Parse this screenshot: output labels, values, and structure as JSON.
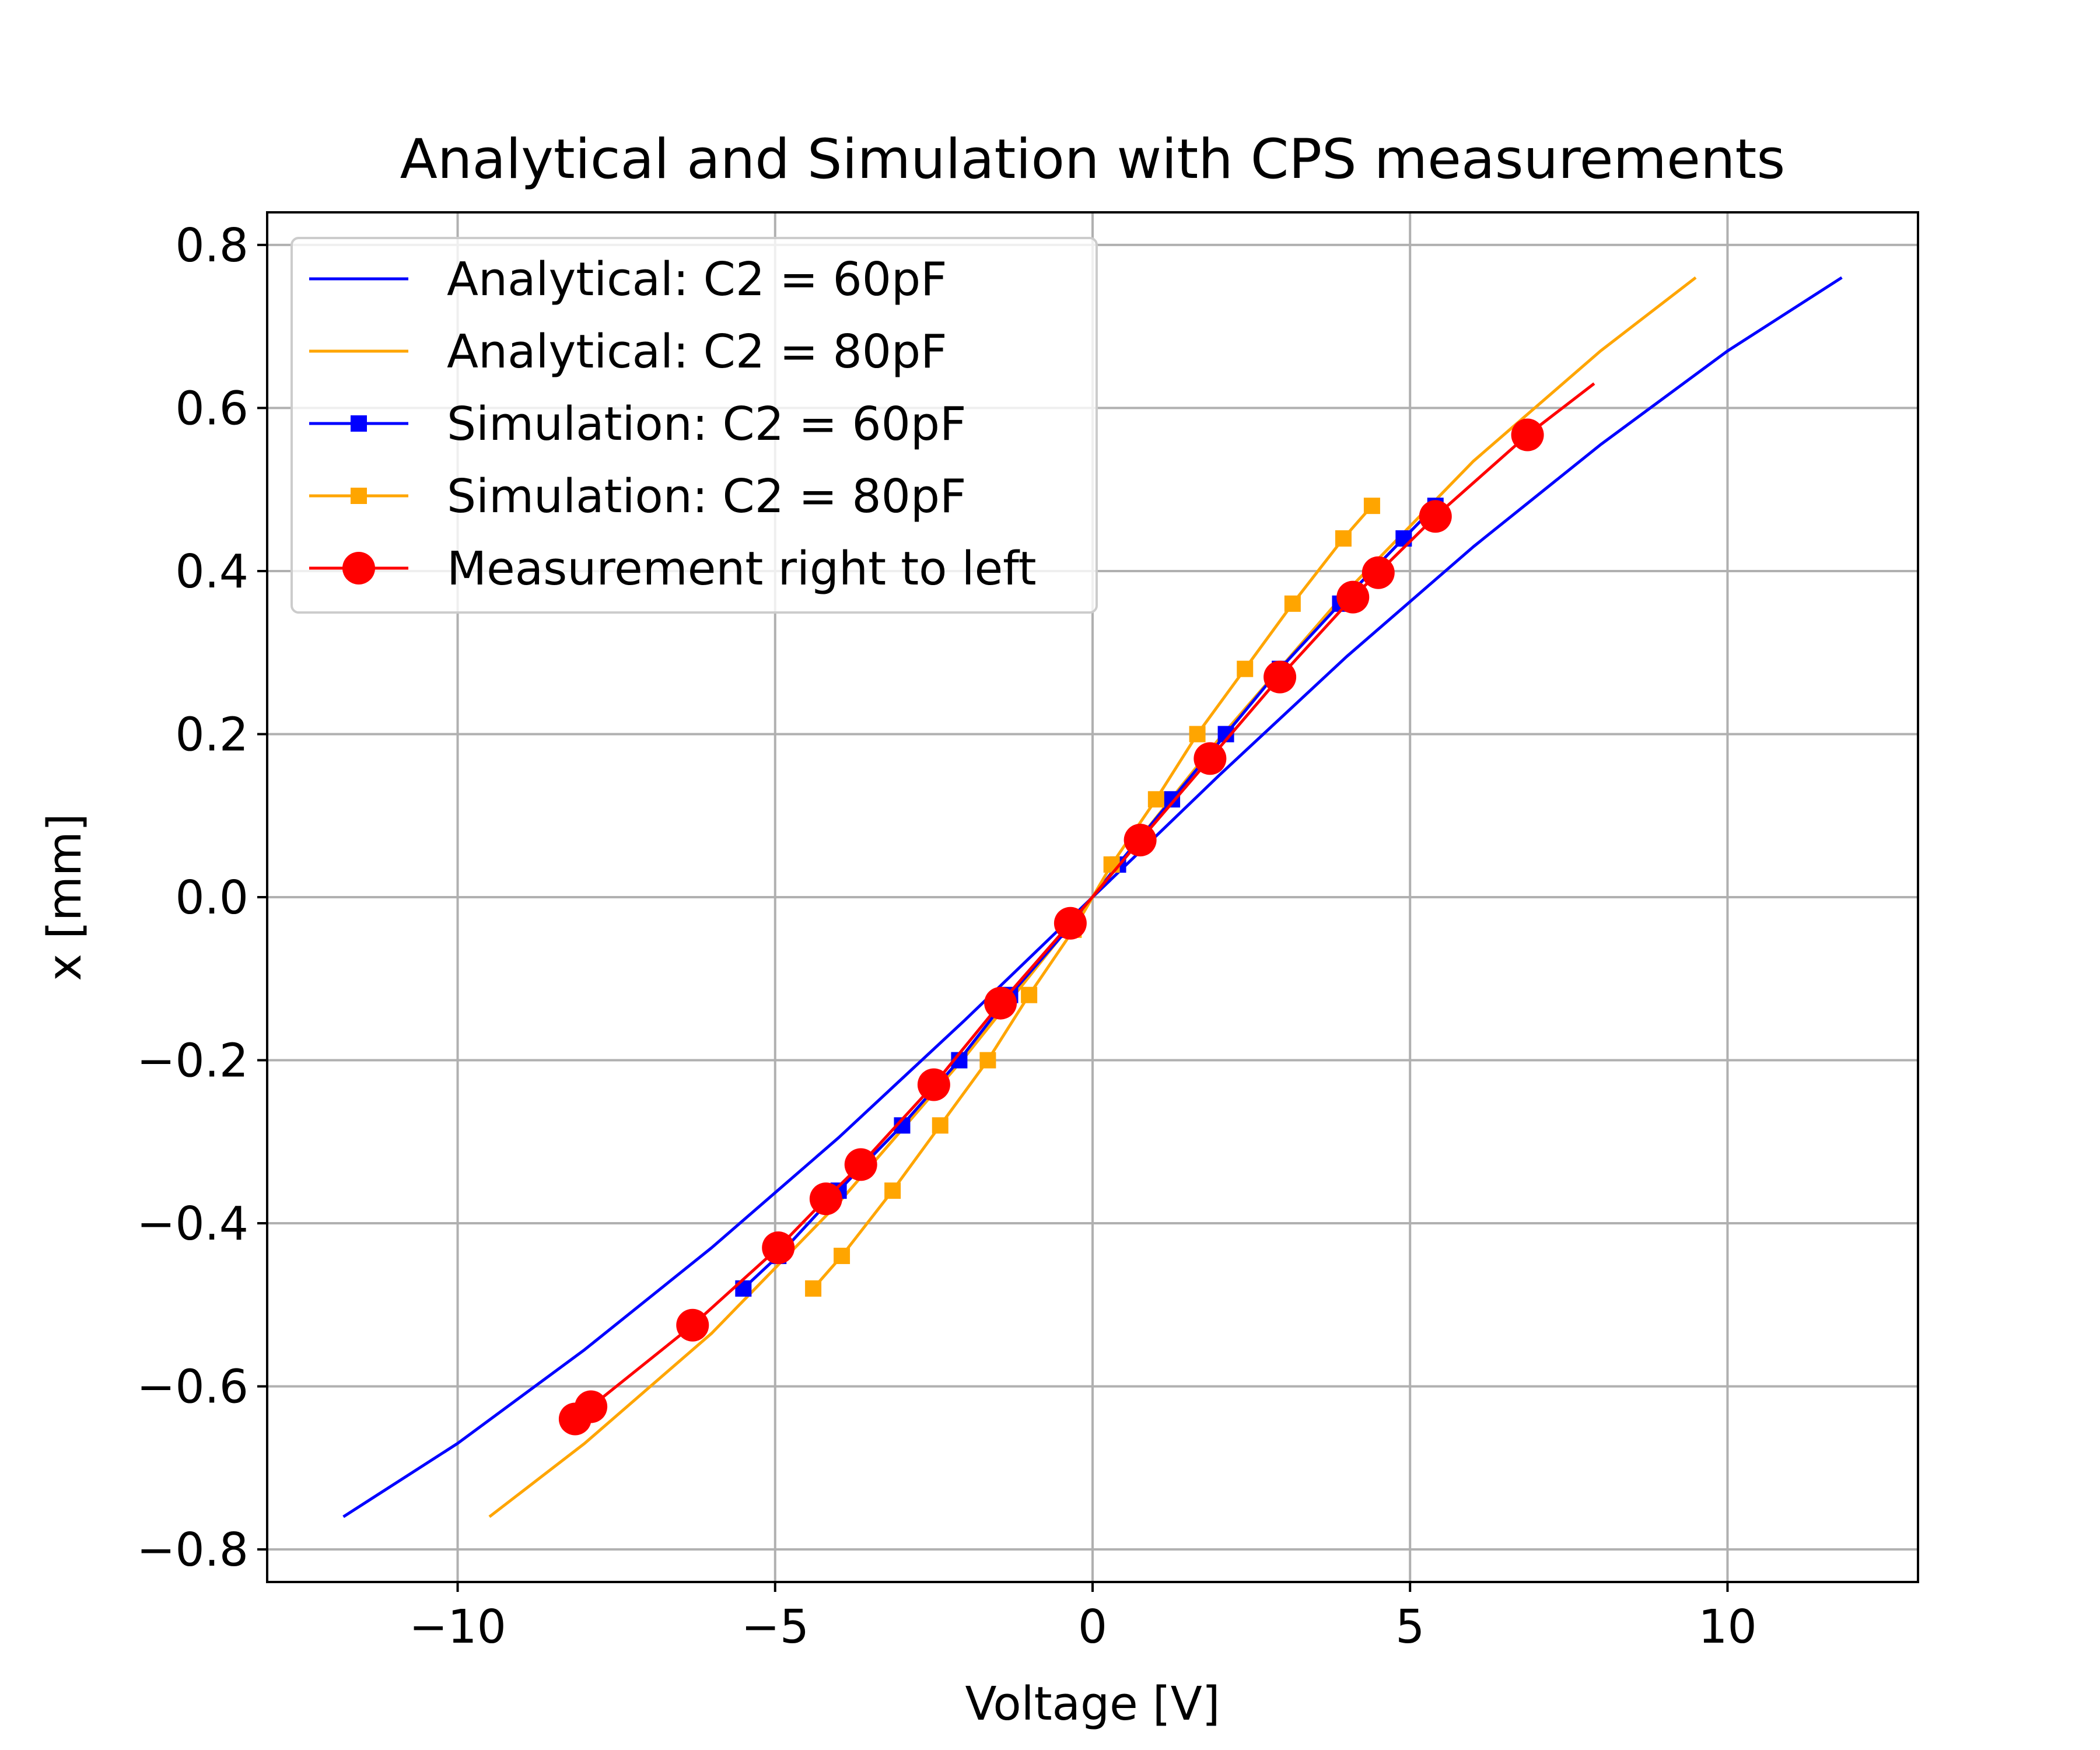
{
  "chart_data": {
    "type": "line",
    "title": "Analytical and Simulation with CPS measurements",
    "xlabel": "Voltage [V]",
    "ylabel": "x [mm]",
    "xlim": [
      -13,
      13
    ],
    "ylim": [
      -0.84,
      0.84
    ],
    "xticks": [
      -10,
      -5,
      0,
      5,
      10
    ],
    "xtick_labels": [
      "−10",
      "−5",
      "0",
      "5",
      "10"
    ],
    "yticks": [
      -0.8,
      -0.6,
      -0.4,
      -0.2,
      0.0,
      0.2,
      0.4,
      0.6,
      0.8
    ],
    "ytick_labels": [
      "−0.8",
      "−0.6",
      "−0.4",
      "−0.2",
      "0.0",
      "0.2",
      "0.4",
      "0.6",
      "0.8"
    ],
    "grid": true,
    "legend_position": "upper-left",
    "series": [
      {
        "name": "Analytical: C2 = 60pF",
        "color": "#0000ff",
        "marker": "none",
        "x": [
          -11.8,
          -10.0,
          -8.0,
          -6.0,
          -4.0,
          -2.0,
          0.0,
          2.0,
          4.0,
          6.0,
          8.0,
          10.0,
          11.8
        ],
        "y": [
          -0.76,
          -0.67,
          -0.555,
          -0.43,
          -0.295,
          -0.15,
          0.0,
          0.15,
          0.295,
          0.43,
          0.555,
          0.67,
          0.76
        ]
      },
      {
        "name": "Analytical: C2 = 80pF",
        "color": "#ffa500",
        "marker": "none",
        "x": [
          -9.5,
          -8.0,
          -6.0,
          -4.0,
          -2.0,
          0.0,
          2.0,
          4.0,
          6.0,
          8.0,
          9.5
        ],
        "y": [
          -0.76,
          -0.67,
          -0.535,
          -0.375,
          -0.195,
          0.0,
          0.195,
          0.375,
          0.535,
          0.67,
          0.76
        ]
      },
      {
        "name": "Simulation: C2 = 60pF",
        "color": "#0000ff",
        "marker": "square",
        "x": [
          -5.5,
          -4.95,
          -4.0,
          -3.0,
          -2.1,
          -1.3,
          -0.4,
          0.4,
          1.25,
          2.1,
          2.95,
          3.9,
          4.9,
          5.4
        ],
        "y": [
          -0.48,
          -0.44,
          -0.36,
          -0.28,
          -0.2,
          -0.12,
          -0.04,
          0.04,
          0.12,
          0.2,
          0.28,
          0.36,
          0.44,
          0.48
        ]
      },
      {
        "name": "Simulation: C2 = 80pF",
        "color": "#ffa500",
        "marker": "square",
        "x": [
          -4.4,
          -3.95,
          -3.15,
          -2.4,
          -1.65,
          -1.0,
          -0.3,
          0.3,
          1.0,
          1.65,
          2.4,
          3.15,
          3.95,
          4.4
        ],
        "y": [
          -0.48,
          -0.44,
          -0.36,
          -0.28,
          -0.2,
          -0.12,
          -0.04,
          0.04,
          0.12,
          0.2,
          0.28,
          0.36,
          0.44,
          0.48
        ]
      },
      {
        "name": "Measurement right to left",
        "color": "#ff0000",
        "marker": "circle",
        "x": [
          -8.15,
          -7.9,
          -6.3,
          -4.95,
          -4.2,
          -3.65,
          -2.5,
          -1.45,
          -0.35,
          0.75,
          1.85,
          2.95,
          4.1,
          4.5,
          5.4,
          6.85
        ],
        "y": [
          -0.64,
          -0.625,
          -0.525,
          -0.43,
          -0.37,
          -0.328,
          -0.23,
          -0.13,
          -0.032,
          0.07,
          0.17,
          0.27,
          0.368,
          0.398,
          0.467,
          0.567
        ],
        "line_extension": {
          "x": 7.9,
          "y": 0.63
        }
      }
    ]
  }
}
